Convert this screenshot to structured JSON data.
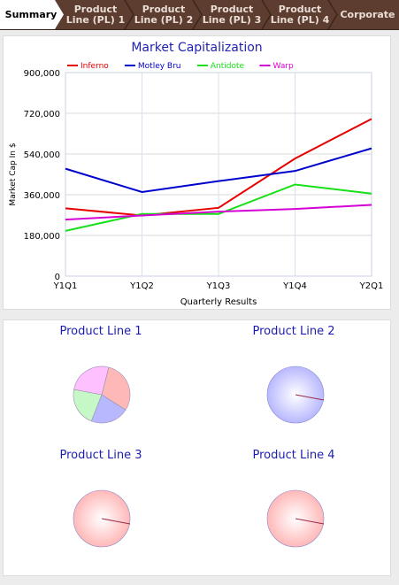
{
  "tabs": [
    {
      "label_line1": "Summary",
      "label_line2": ""
    },
    {
      "label_line1": "Product",
      "label_line2": "Line (PL) 1"
    },
    {
      "label_line1": "Product",
      "label_line2": "Line (PL) 2"
    },
    {
      "label_line1": "Product",
      "label_line2": "Line (PL) 3"
    },
    {
      "label_line1": "Product",
      "label_line2": "Line (PL) 4"
    },
    {
      "label_line1": "Corporate",
      "label_line2": ""
    }
  ],
  "colors": {
    "tab_bar": "#5c3d2f",
    "tab_active": "#ffffff",
    "title_blue": "#1f1fb0",
    "Inferno": "#e60000",
    "Motley Bru": "#0000cc",
    "Antidote": "#16e016",
    "Warp": "#d600d6"
  },
  "chart_data": {
    "type": "line",
    "title": "Market Capitalization",
    "xlabel": "Quarterly Results",
    "ylabel": "Market Cap In $",
    "categories": [
      "Y1Q1",
      "Y1Q2",
      "Y1Q3",
      "Y1Q4",
      "Y2Q1"
    ],
    "yticks": [
      "0",
      "180,000",
      "360,000",
      "540,000",
      "720,000",
      "900,000"
    ],
    "ylim": [
      0,
      900000
    ],
    "grid": true,
    "legend_position": "top-left",
    "series": [
      {
        "name": "Inferno",
        "color": "#e60000",
        "values": [
          300000,
          268000,
          302000,
          520000,
          695000
        ]
      },
      {
        "name": "Motley Bru",
        "color": "#0000cc",
        "values": [
          475000,
          372000,
          420000,
          465000,
          565000
        ]
      },
      {
        "name": "Antidote",
        "color": "#16e016",
        "values": [
          200000,
          275000,
          275000,
          405000,
          365000
        ]
      },
      {
        "name": "Warp",
        "color": "#d600d6",
        "values": [
          250000,
          268000,
          285000,
          297000,
          315000
        ]
      }
    ]
  },
  "pies": [
    {
      "title": "Product Line 1",
      "slices": [
        {
          "label": "Inferno",
          "value": 30,
          "color": "#ffb8b8"
        },
        {
          "label": "Motley Bru",
          "value": 22,
          "color": "#b8b8ff"
        },
        {
          "label": "Antidote",
          "value": 22,
          "color": "#c6f7c6"
        },
        {
          "label": "Warp",
          "value": 26,
          "color": "#ffc0ff"
        }
      ]
    },
    {
      "title": "Product Line 2",
      "slices": [
        {
          "label": "Motley Bru",
          "value": 100,
          "color": "#b8b8ff"
        }
      ]
    },
    {
      "title": "Product Line 3",
      "slices": [
        {
          "label": "Inferno",
          "value": 100,
          "color": "#ffb8b8"
        }
      ]
    },
    {
      "title": "Product Line 4",
      "slices": [
        {
          "label": "Inferno",
          "value": 100,
          "color": "#ffb8b8"
        }
      ]
    }
  ]
}
